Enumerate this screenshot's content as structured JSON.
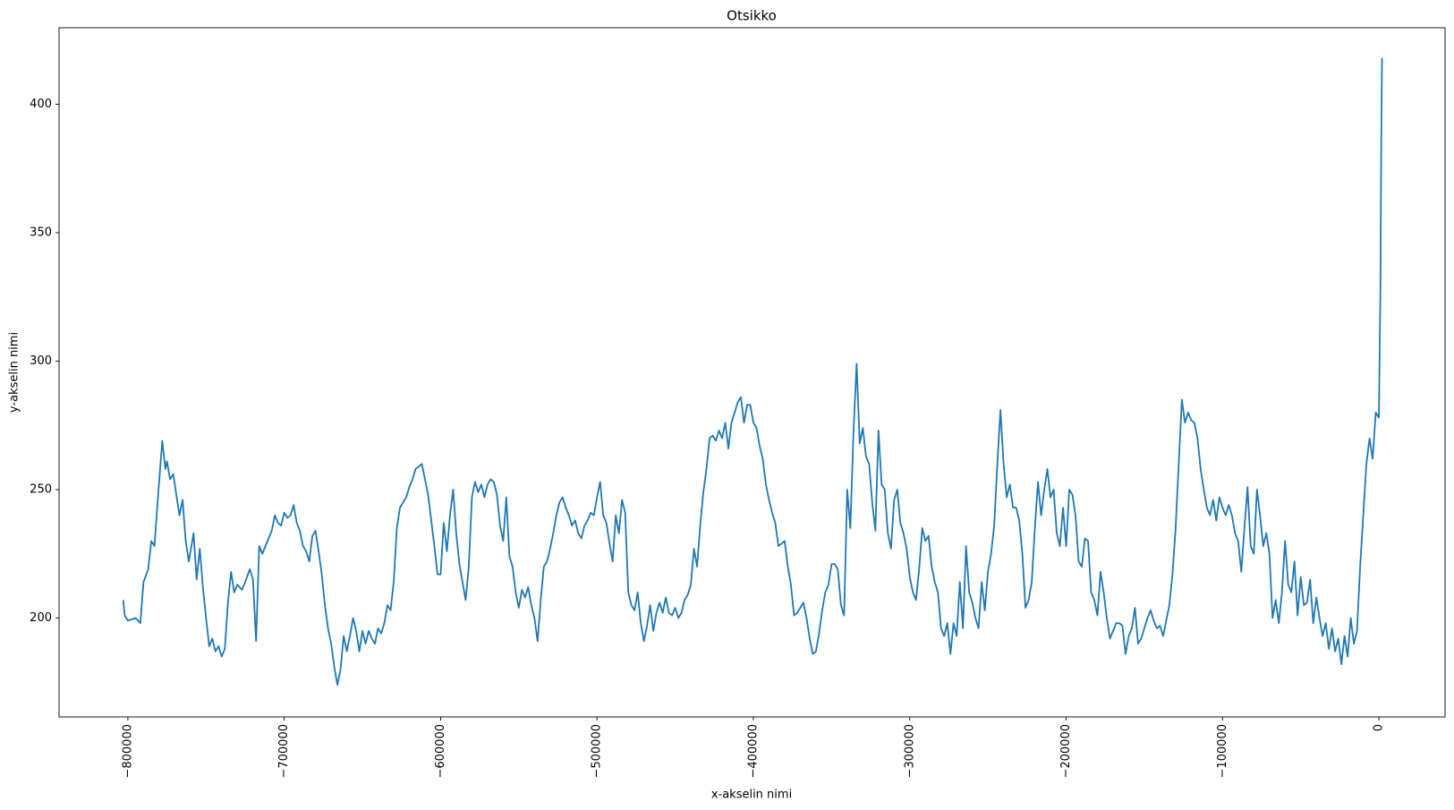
{
  "chart_data": {
    "type": "line",
    "title": "Otsikko",
    "x_label": "x-akselin nimi",
    "y_label": "y-akselin nimi",
    "color": "#1f77b4",
    "xlim": [
      -844000,
      42300
    ],
    "ylim": [
      161.5,
      429.8
    ],
    "xticks": [
      {
        "value": -800000,
        "label": "−800000"
      },
      {
        "value": -700000,
        "label": "−700000"
      },
      {
        "value": -600000,
        "label": "−600000"
      },
      {
        "value": -500000,
        "label": "−500000"
      },
      {
        "value": -400000,
        "label": "−400000"
      },
      {
        "value": -300000,
        "label": "−300000"
      },
      {
        "value": -200000,
        "label": "−200000"
      },
      {
        "value": -100000,
        "label": "−100000"
      },
      0
    ],
    "yticks": [
      200,
      250,
      300,
      350,
      400
    ],
    "x": [
      -803000,
      -802000,
      -800000,
      -795000,
      -792000,
      -790000,
      -787000,
      -785000,
      -783000,
      -781000,
      -779000,
      -778000,
      -776000,
      -775000,
      -773000,
      -771000,
      -769000,
      -767000,
      -765000,
      -763000,
      -761000,
      -758000,
      -756000,
      -754000,
      -752000,
      -750000,
      -748000,
      -746000,
      -744000,
      -742000,
      -740000,
      -738000,
      -736000,
      -734000,
      -732000,
      -730000,
      -727000,
      -725000,
      -722000,
      -720000,
      -718000,
      -716000,
      -714000,
      -712000,
      -710000,
      -708000,
      -706000,
      -704000,
      -702000,
      -700000,
      -698000,
      -696000,
      -694000,
      -692000,
      -690000,
      -688000,
      -686000,
      -684000,
      -682000,
      -680000,
      -678000,
      -676000,
      -674000,
      -672000,
      -670000,
      -668000,
      -666000,
      -664000,
      -662000,
      -660000,
      -658000,
      -656000,
      -654000,
      -652000,
      -650000,
      -648000,
      -646000,
      -644000,
      -642000,
      -640000,
      -638000,
      -636000,
      -634000,
      -632000,
      -630000,
      -628000,
      -626000,
      -624000,
      -622000,
      -620000,
      -618000,
      -616000,
      -614000,
      -612000,
      -610000,
      -608000,
      -606000,
      -604000,
      -602000,
      -600000,
      -598000,
      -596000,
      -594000,
      -592000,
      -590000,
      -588000,
      -586000,
      -584000,
      -582000,
      -580000,
      -578000,
      -576000,
      -574000,
      -572000,
      -570000,
      -568000,
      -566000,
      -564000,
      -562000,
      -560000,
      -558000,
      -556000,
      -554000,
      -552000,
      -550000,
      -548000,
      -546000,
      -544000,
      -542000,
      -540000,
      -538000,
      -536000,
      -534000,
      -532000,
      -530000,
      -528000,
      -526000,
      -524000,
      -522000,
      -520000,
      -518000,
      -516000,
      -514000,
      -512000,
      -510000,
      -508000,
      -506000,
      -504000,
      -502000,
      -500000,
      -498000,
      -496000,
      -494000,
      -492000,
      -490000,
      -488000,
      -486000,
      -484000,
      -482000,
      -480000,
      -478000,
      -476000,
      -474000,
      -472000,
      -470000,
      -468000,
      -466000,
      -464000,
      -462000,
      -460000,
      -458000,
      -456000,
      -454000,
      -452000,
      -450000,
      -448000,
      -446000,
      -444000,
      -442000,
      -440000,
      -438000,
      -436000,
      -434000,
      -432000,
      -430000,
      -428000,
      -426000,
      -424000,
      -422000,
      -420000,
      -418000,
      -416000,
      -414000,
      -412000,
      -410000,
      -408000,
      -406000,
      -404000,
      -402000,
      -400000,
      -398000,
      -396000,
      -394000,
      -392000,
      -390000,
      -388000,
      -386000,
      -384000,
      -382000,
      -380000,
      -378000,
      -376000,
      -374000,
      -372000,
      -370000,
      -368000,
      -366000,
      -364000,
      -362000,
      -360000,
      -358000,
      -356000,
      -354000,
      -352000,
      -350000,
      -348000,
      -346000,
      -344000,
      -342000,
      -340000,
      -338000,
      -336000,
      -334000,
      -332000,
      -330000,
      -328000,
      -326000,
      -324000,
      -322000,
      -320000,
      -318000,
      -316000,
      -314000,
      -312000,
      -310000,
      -308000,
      -306000,
      -304000,
      -302000,
      -300000,
      -298000,
      -296000,
      -294000,
      -292000,
      -290000,
      -288000,
      -286000,
      -284000,
      -282000,
      -280000,
      -278000,
      -276000,
      -274000,
      -272000,
      -270000,
      -268000,
      -266000,
      -264000,
      -262000,
      -260000,
      -258000,
      -256000,
      -254000,
      -252000,
      -250000,
      -248000,
      -246000,
      -244000,
      -242000,
      -240000,
      -238000,
      -236000,
      -234000,
      -232000,
      -230000,
      -228000,
      -226000,
      -224000,
      -222000,
      -220000,
      -218000,
      -216000,
      -214000,
      -212000,
      -210000,
      -208000,
      -206000,
      -204000,
      -202000,
      -200000,
      -198000,
      -196000,
      -194000,
      -192000,
      -190000,
      -188000,
      -186000,
      -184000,
      -182000,
      -180000,
      -178000,
      -176000,
      -174000,
      -172000,
      -170000,
      -168000,
      -166000,
      -164000,
      -162000,
      -160000,
      -158000,
      -156000,
      -154000,
      -152000,
      -150000,
      -148000,
      -146000,
      -144000,
      -142000,
      -140000,
      -138000,
      -136000,
      -134000,
      -132000,
      -130000,
      -128000,
      -126000,
      -124000,
      -122000,
      -120000,
      -118000,
      -116000,
      -114000,
      -112000,
      -110000,
      -108000,
      -106000,
      -104000,
      -102000,
      -100000,
      -98000,
      -96000,
      -94000,
      -92000,
      -90000,
      -88000,
      -86000,
      -84000,
      -82000,
      -80000,
      -78000,
      -76000,
      -74000,
      -72000,
      -70000,
      -68000,
      -66000,
      -64000,
      -62000,
      -60000,
      -58000,
      -56000,
      -54000,
      -52000,
      -50000,
      -48000,
      -46000,
      -44000,
      -42000,
      -40000,
      -38000,
      -36000,
      -34000,
      -32000,
      -30000,
      -28000,
      -26000,
      -24000,
      -22000,
      -20000,
      -18000,
      -16000,
      -14000,
      -12000,
      -10000,
      -8000,
      -6000,
      -4000,
      -2000,
      0,
      500,
      1000,
      1500,
      2001
    ],
    "values": [
      207,
      201,
      199,
      200,
      198,
      214,
      219,
      230,
      228,
      245,
      261,
      269,
      258,
      261,
      254,
      256,
      248,
      240,
      246,
      230,
      222,
      233,
      215,
      227,
      212,
      200,
      189,
      192,
      187,
      189,
      185,
      188,
      206,
      218,
      210,
      213,
      211,
      214,
      219,
      215,
      191,
      228,
      225,
      228,
      231,
      234,
      240,
      237,
      236,
      241,
      239,
      240,
      244,
      237,
      234,
      228,
      226,
      222,
      232,
      234,
      226,
      217,
      205,
      196,
      190,
      181,
      174,
      180,
      193,
      187,
      193,
      200,
      195,
      187,
      195,
      190,
      195,
      192,
      190,
      196,
      194,
      198,
      205,
      203,
      214,
      235,
      243,
      245,
      247,
      251,
      254,
      258,
      259,
      260,
      254,
      248,
      238,
      228,
      217,
      217,
      237,
      226,
      240,
      250,
      233,
      221,
      214,
      207,
      220,
      247,
      253,
      249,
      252,
      247,
      252,
      254,
      253,
      248,
      236,
      230,
      247,
      224,
      220,
      210,
      204,
      211,
      208,
      212,
      205,
      200,
      191,
      207,
      220,
      222,
      227,
      233,
      240,
      245,
      247,
      243,
      240,
      236,
      238,
      233,
      231,
      236,
      238,
      241,
      240,
      247,
      253,
      240,
      237,
      229,
      222,
      240,
      233,
      246,
      241,
      210,
      205,
      203,
      210,
      198,
      191,
      197,
      205,
      195,
      202,
      206,
      202,
      208,
      202,
      201,
      204,
      200,
      202,
      207,
      209,
      213,
      227,
      220,
      236,
      249,
      258,
      270,
      271,
      269,
      273,
      270,
      276,
      266,
      276,
      280,
      284,
      286,
      276,
      283,
      283,
      276,
      274,
      267,
      262,
      252,
      246,
      241,
      237,
      228,
      229,
      230,
      220,
      213,
      201,
      202,
      204,
      206,
      200,
      192,
      186,
      187,
      194,
      203,
      210,
      213,
      221,
      221,
      219,
      205,
      201,
      250,
      235,
      272,
      299,
      268,
      274,
      263,
      260,
      245,
      234,
      273,
      252,
      250,
      233,
      227,
      246,
      250,
      237,
      233,
      227,
      216,
      210,
      207,
      219,
      235,
      230,
      232,
      220,
      214,
      210,
      196,
      193,
      198,
      186,
      198,
      193,
      214,
      196,
      228,
      210,
      206,
      200,
      196,
      214,
      203,
      218,
      225,
      236,
      260,
      281,
      260,
      247,
      252,
      243,
      243,
      238,
      225,
      204,
      207,
      214,
      235,
      253,
      240,
      250,
      258,
      247,
      250,
      233,
      228,
      243,
      228,
      250,
      248,
      240,
      222,
      220,
      231,
      230,
      210,
      207,
      201,
      218,
      210,
      200,
      192,
      195,
      198,
      198,
      197,
      186,
      193,
      196,
      204,
      190,
      192,
      196,
      200,
      203,
      199,
      196,
      197,
      193,
      199,
      205,
      217,
      235,
      260,
      285,
      276,
      280,
      277,
      276,
      270,
      258,
      250,
      243,
      240,
      246,
      238,
      247,
      243,
      240,
      244,
      240,
      233,
      230,
      218,
      235,
      251,
      228,
      225,
      250,
      240,
      228,
      233,
      225,
      200,
      207,
      198,
      210,
      230,
      213,
      210,
      222,
      201,
      216,
      205,
      206,
      215,
      198,
      208,
      200,
      193,
      198,
      188,
      196,
      187,
      192,
      182,
      193,
      185,
      200,
      190,
      195,
      220,
      240,
      260,
      270,
      262,
      280,
      278,
      305,
      330,
      385,
      418
    ]
  }
}
